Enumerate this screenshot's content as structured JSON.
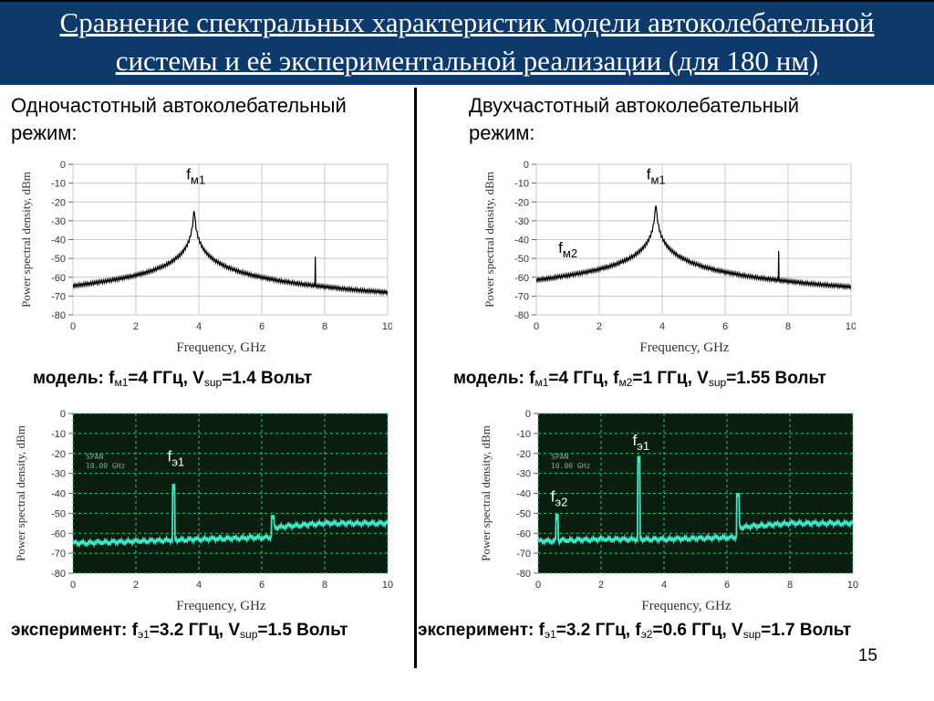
{
  "title": {
    "line1": "Сравнение спектральных характеристик модели автоколебательной",
    "line2": "системы и её экспериментальной реализации (для 180 нм)"
  },
  "left": {
    "heading_line1": "Одночастотный автоколебательный",
    "heading_line2": "режим:",
    "model_caption": {
      "prefix": "модель: f",
      "sub1": "м1",
      "mid1": "=4 ГГц, V",
      "sub2": "sup",
      "end": "=1.4 Вольт"
    },
    "exp_caption": {
      "prefix": "эксперимент: f",
      "sub1": "э1",
      "mid1": "=3.2 ГГц, V",
      "sub2": "sup",
      "end": "=1.5 Вольт"
    }
  },
  "right": {
    "heading_line1": "Двухчастотный автоколебательный",
    "heading_line2": "режим:",
    "model_caption": {
      "prefix": "модель: f",
      "sub1": "м1",
      "mid1": "=4 ГГц, f",
      "sub2": "м2",
      "mid2": "=1 ГГц, V",
      "sub3": "sup",
      "end": "=1.55 Вольт"
    },
    "exp_caption": {
      "prefix": "эксперимент: f",
      "sub1": "э1",
      "mid1": "=3.2 ГГц, f",
      "sub2": "э2",
      "mid2": "=0.6 ГГц, V",
      "sub3": "sup",
      "end": "=1.7 Вольт"
    }
  },
  "page_number": "15",
  "colors": {
    "title_bg": "#0d3a6b",
    "model_line": "#000000",
    "exp_bg": "#0a1e0f",
    "exp_trace": "#3de8c8",
    "exp_grid": "#2ec47a"
  },
  "chart_data": [
    {
      "id": "model-single",
      "type": "line",
      "xlabel": "Frequency, GHz",
      "ylabel": "Power spectral density, dBm",
      "xlim": [
        0,
        10
      ],
      "ylim": [
        -80,
        0
      ],
      "xticks": [
        "0",
        "2",
        "4",
        "6",
        "8",
        "10"
      ],
      "yticks": [
        "0",
        "-10",
        "-20",
        "-30",
        "-40",
        "-50",
        "-60",
        "-70",
        "-80"
      ],
      "style": "model",
      "peaks": [
        {
          "x": 3.85,
          "y": -24,
          "width": 0.55
        },
        {
          "x": 7.7,
          "y": -49,
          "width": 0.05
        }
      ],
      "annotations": [
        {
          "label": "f",
          "sub": "м1",
          "x": 3.6,
          "y": -8
        }
      ]
    },
    {
      "id": "model-dual",
      "type": "line",
      "xlabel": "Frequency, GHz",
      "ylabel": "Power spectral density, dBm",
      "xlim": [
        0,
        10
      ],
      "ylim": [
        -80,
        0
      ],
      "xticks": [
        "0",
        "2",
        "4",
        "6",
        "8",
        "10"
      ],
      "yticks": [
        "0",
        "-10",
        "-20",
        "-30",
        "-40",
        "-50",
        "-60",
        "-70",
        "-80"
      ],
      "style": "model",
      "peaks": [
        {
          "x": 1.0,
          "y": -60,
          "width": 0.05
        },
        {
          "x": 3.8,
          "y": -21,
          "width": 0.55
        },
        {
          "x": 7.7,
          "y": -46,
          "width": 0.05
        }
      ],
      "annotations": [
        {
          "label": "f",
          "sub": "м1",
          "x": 3.5,
          "y": -8
        },
        {
          "label": "f",
          "sub": "м2",
          "x": 0.7,
          "y": -47
        }
      ]
    },
    {
      "id": "exp-single",
      "type": "line",
      "xlabel": "Frequency, GHz",
      "ylabel": "Power spectral density, dBm",
      "xlim": [
        0,
        10
      ],
      "ylim": [
        -80,
        0
      ],
      "xticks": [
        "0",
        "2",
        "4",
        "6",
        "8",
        "10"
      ],
      "yticks": [
        "0",
        "-10",
        "-20",
        "-30",
        "-40",
        "-50",
        "-60",
        "-70",
        "-80"
      ],
      "style": "exp",
      "screen_text": [
        "SPAN",
        "10.00 GHz"
      ],
      "baseline": [
        [
          0.0,
          -65
        ],
        [
          2.0,
          -64
        ],
        [
          4.0,
          -63
        ],
        [
          6.3,
          -62
        ],
        [
          6.4,
          -57
        ],
        [
          8.0,
          -55
        ],
        [
          10.0,
          -55
        ]
      ],
      "peaks": [
        {
          "x": 3.2,
          "y": -37
        },
        {
          "x": 6.35,
          "y": -53
        }
      ],
      "annotations": [
        {
          "label": "f",
          "sub": "э1",
          "x": 3.0,
          "y": -24
        }
      ]
    },
    {
      "id": "exp-dual",
      "type": "line",
      "xlabel": "Frequency, GHz",
      "ylabel": "Power spectral density, dBm",
      "xlim": [
        0,
        10
      ],
      "ylim": [
        -80,
        0
      ],
      "xticks": [
        "0",
        "2",
        "4",
        "6",
        "8",
        "10"
      ],
      "yticks": [
        "0",
        "-10",
        "-20",
        "-30",
        "-40",
        "-50",
        "-60",
        "-70",
        "-80"
      ],
      "style": "exp",
      "screen_text": [
        "SPAN",
        "10.00 GHz"
      ],
      "baseline": [
        [
          0.0,
          -64
        ],
        [
          2.0,
          -63
        ],
        [
          4.0,
          -63
        ],
        [
          6.3,
          -62
        ],
        [
          6.4,
          -57
        ],
        [
          8.0,
          -55
        ],
        [
          10.0,
          -55
        ]
      ],
      "peaks": [
        {
          "x": 0.6,
          "y": -52
        },
        {
          "x": 3.2,
          "y": -23
        },
        {
          "x": 6.35,
          "y": -42
        }
      ],
      "annotations": [
        {
          "label": "f",
          "sub": "э1",
          "x": 3.0,
          "y": -16
        },
        {
          "label": "f",
          "sub": "э2",
          "x": 0.4,
          "y": -44
        }
      ]
    }
  ]
}
